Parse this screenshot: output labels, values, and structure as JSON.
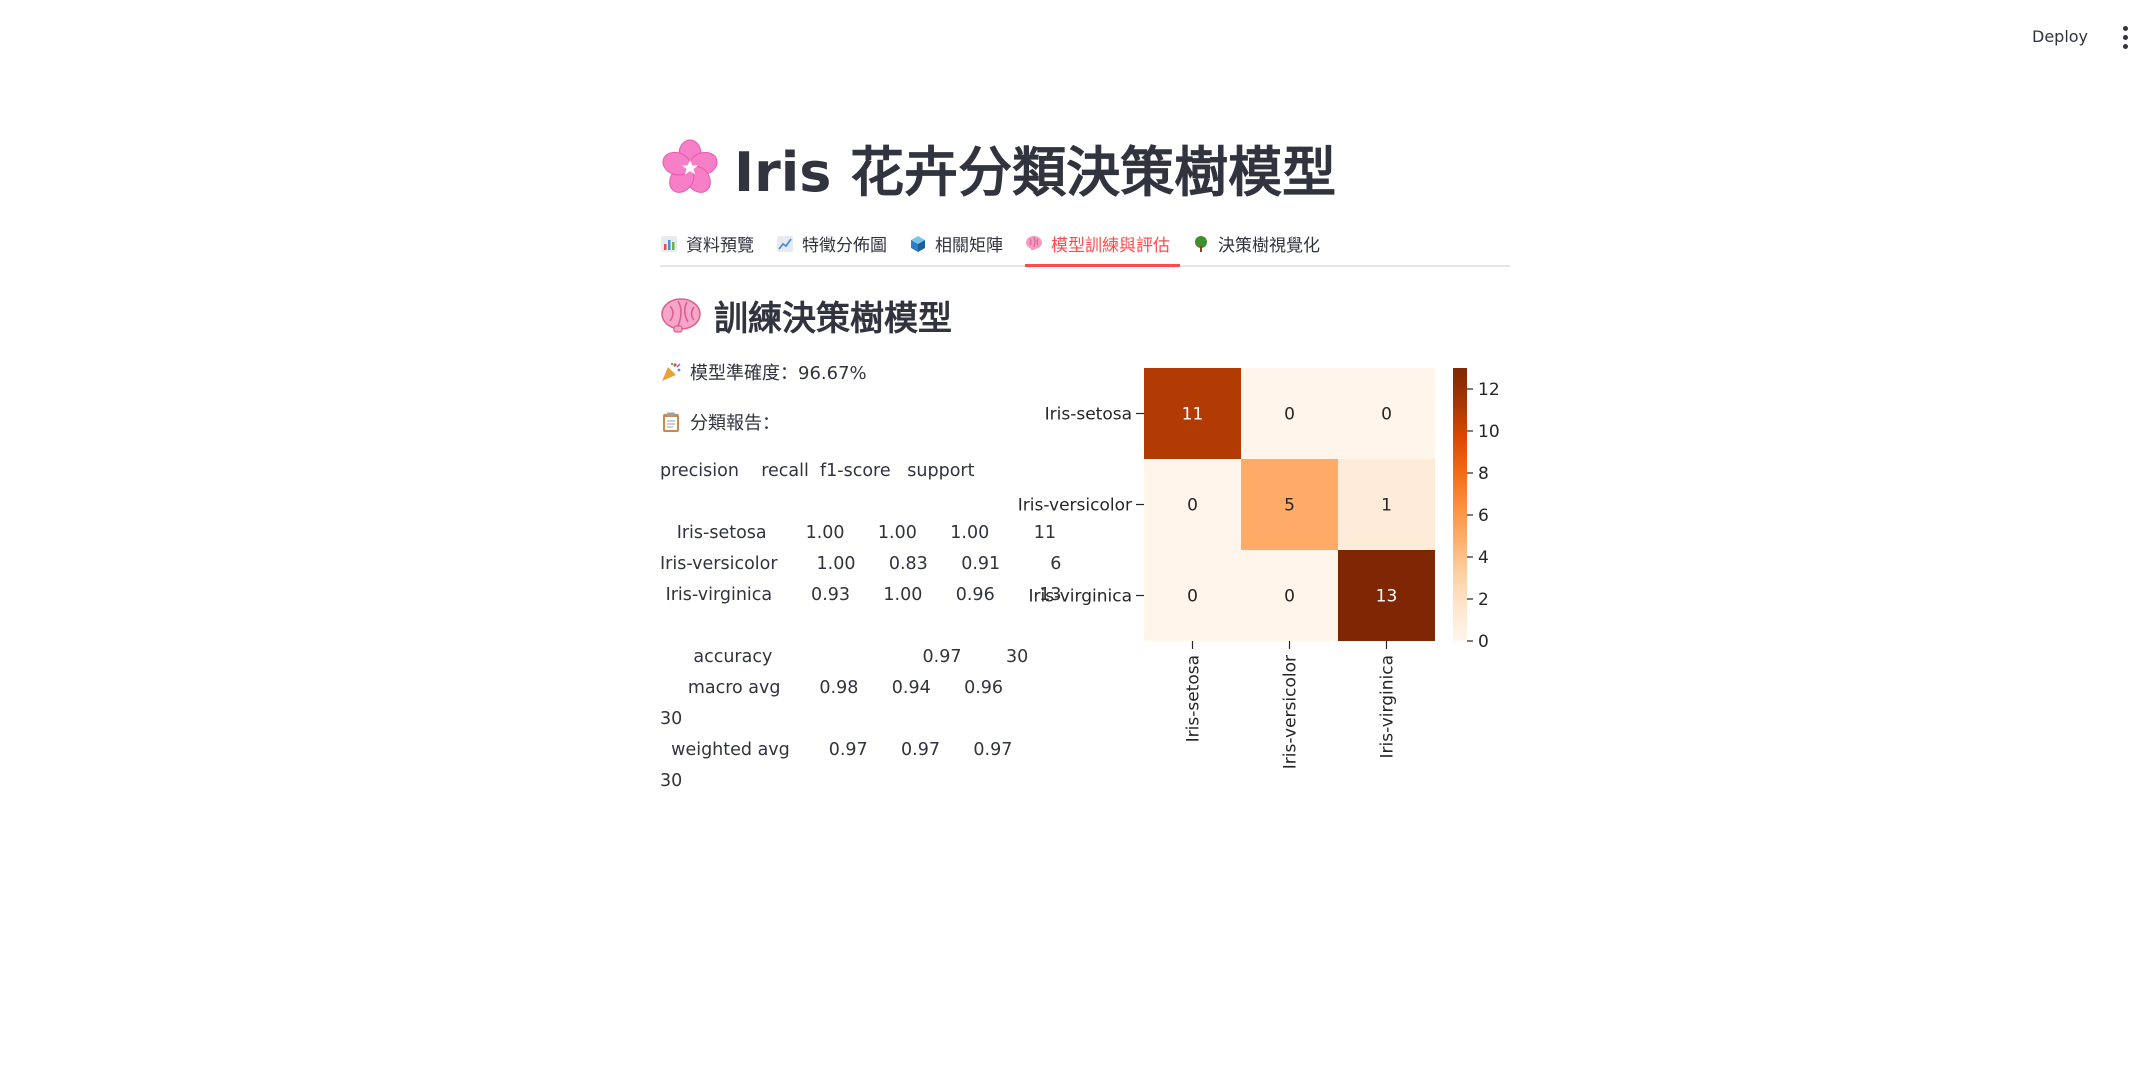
{
  "header": {
    "deploy_label": "Deploy",
    "menu_icon": "more-vertical-icon"
  },
  "page": {
    "title": "Iris 花卉分類決策樹模型",
    "title_icon": "cherry-blossom-icon"
  },
  "tabs": [
    {
      "label": "資料預覽",
      "icon": "bar-chart-icon",
      "active": false
    },
    {
      "label": "特徵分佈圖",
      "icon": "line-chart-icon",
      "active": false
    },
    {
      "label": "相關矩陣",
      "icon": "cube-icon",
      "active": false
    },
    {
      "label": "模型訓練與評估",
      "icon": "brain-icon",
      "active": true
    },
    {
      "label": "決策樹視覺化",
      "icon": "tree-icon",
      "active": false
    }
  ],
  "section": {
    "title": "訓練決策樹模型",
    "icon": "brain-icon",
    "accuracy_text": "模型準確度：96.67%",
    "accuracy_icon": "party-popper-icon",
    "report_label": "分類報告：",
    "report_icon": "clipboard-icon"
  },
  "report": {
    "lines": [
      "precision    recall  f1-score   support",
      "",
      "   Iris-setosa       1.00      1.00      1.00        11",
      "Iris-versicolor       1.00      0.83      0.91         6",
      " Iris-virginica       0.93      1.00      0.96        13",
      "",
      "      accuracy                           0.97        30",
      "     macro avg       0.98      0.94      0.96",
      "30",
      "  weighted avg       0.97      0.97      0.97",
      "30"
    ]
  },
  "chart_data": {
    "type": "heatmap",
    "rows": [
      "Iris-setosa",
      "Iris-versicolor",
      "Iris-virginica"
    ],
    "cols": [
      "Iris-setosa",
      "Iris-versicolor",
      "Iris-virginica"
    ],
    "values": [
      [
        11,
        0,
        0
      ],
      [
        0,
        5,
        1
      ],
      [
        0,
        0,
        13
      ]
    ],
    "colorbar_ticks": [
      0,
      2,
      4,
      6,
      8,
      10,
      12
    ],
    "vmin": 0,
    "vmax": 13,
    "colormap": "Oranges",
    "colors": {
      "low": "#fff5eb",
      "high": "#7f2704"
    }
  }
}
